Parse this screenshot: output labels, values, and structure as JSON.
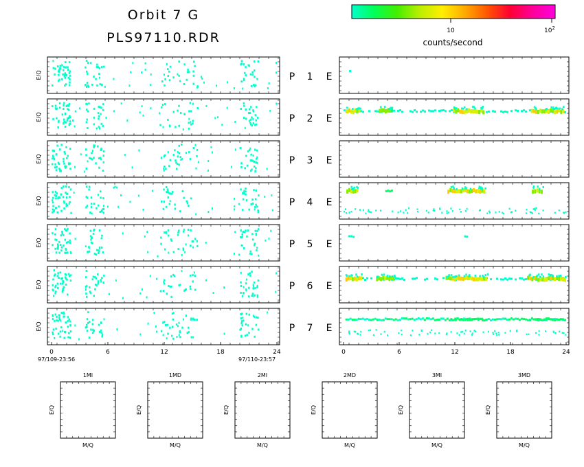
{
  "header": {
    "title_line1": "Orbit 7 G",
    "title_line2": "PLS97110.RDR"
  },
  "colorbar": {
    "label": "counts/second",
    "tick_10": "10",
    "tick_100_base": "10",
    "tick_100_exp": "2",
    "stops": [
      "#00ffcc",
      "#00ff55",
      "#44ee00",
      "#bbee00",
      "#ffee00",
      "#ffaa00",
      "#ff5500",
      "#ff0033",
      "#ff0099",
      "#ff00dd"
    ]
  },
  "chart_data": {
    "type": "heatmap",
    "ylabel": "E/Q",
    "x_ticks": [
      "0",
      "6",
      "12",
      "18",
      "24"
    ],
    "xlim": [
      0,
      24
    ],
    "time_start": "97/109-23:56",
    "time_end": "97/110-23:57",
    "rows": [
      {
        "label": "P 1 E",
        "p": "P",
        "n": "1",
        "e": "E"
      },
      {
        "label": "P 2 E",
        "p": "P",
        "n": "2",
        "e": "E"
      },
      {
        "label": "P 3 E",
        "p": "P",
        "n": "3",
        "e": "E"
      },
      {
        "label": "P 4 E",
        "p": "P",
        "n": "4",
        "e": "E"
      },
      {
        "label": "P 5 E",
        "p": "P",
        "n": "5",
        "e": "E"
      },
      {
        "label": "P 6 E",
        "p": "P",
        "n": "6",
        "e": "E"
      },
      {
        "label": "P 7 E",
        "p": "P",
        "n": "7",
        "e": "E"
      }
    ],
    "left_activity_hours": [
      [
        0,
        2
      ],
      [
        3.5,
        5.5
      ],
      [
        11.5,
        15.5
      ],
      [
        20,
        22
      ]
    ],
    "right_bands": [
      [],
      [
        {
          "from": 0,
          "to": 24,
          "strength": 0.3
        },
        {
          "from": 0.3,
          "to": 1.8,
          "strength": 0.9
        },
        {
          "from": 3.8,
          "to": 5.3,
          "strength": 0.7
        },
        {
          "from": 11.8,
          "to": 15.2,
          "strength": 0.9
        },
        {
          "from": 20.2,
          "to": 23.8,
          "strength": 0.9
        }
      ],
      [],
      [
        {
          "from": 0.3,
          "to": 1.6,
          "strength": 0.8
        },
        {
          "from": 4.5,
          "to": 5.3,
          "strength": 0.5
        },
        {
          "from": 11.2,
          "to": 15.3,
          "strength": 0.9
        },
        {
          "from": 20.3,
          "to": 21.5,
          "strength": 0.8
        }
      ],
      [
        {
          "from": 0.5,
          "to": 1.2,
          "strength": 0.3
        },
        {
          "from": 13,
          "to": 14,
          "strength": 0.3
        }
      ],
      [
        {
          "from": 0.2,
          "to": 2,
          "strength": 0.9
        },
        {
          "from": 2,
          "to": 24,
          "strength": 0.25
        },
        {
          "from": 3.5,
          "to": 5.5,
          "strength": 0.7
        },
        {
          "from": 11,
          "to": 15.5,
          "strength": 0.9
        },
        {
          "from": 19.8,
          "to": 24,
          "strength": 0.9
        }
      ],
      [
        {
          "from": 0.2,
          "to": 24,
          "strength": 0.4
        },
        {
          "from": 11.5,
          "to": 15.5,
          "strength": 0.5
        },
        {
          "from": 20,
          "to": 24,
          "strength": 0.5
        }
      ]
    ]
  },
  "mq_panels": {
    "ylabel": "E/Q",
    "xlabel": "M/Q",
    "titles": [
      "1MI",
      "1MD",
      "2MI",
      "2MD",
      "3MI",
      "3MD"
    ]
  }
}
